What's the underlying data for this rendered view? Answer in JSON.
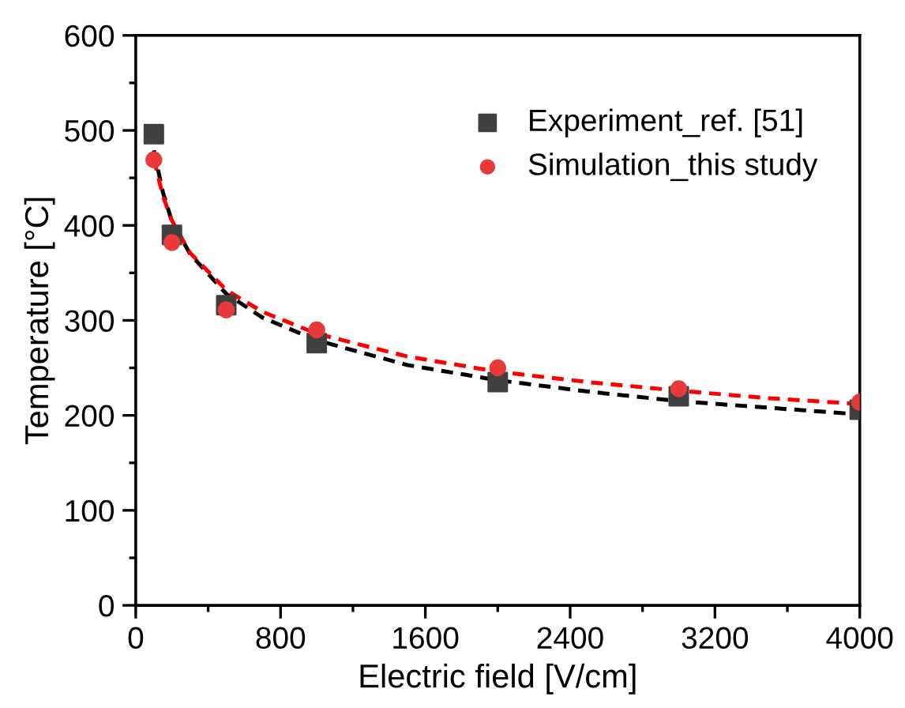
{
  "chart_data": {
    "type": "scatter",
    "xlabel": "Electric field [V/cm]",
    "ylabel": "Temperature [°C]",
    "xlim": [
      0,
      4000
    ],
    "xticks": [
      0,
      800,
      1600,
      2400,
      3200,
      4000
    ],
    "ylim": [
      0,
      600
    ],
    "yticks": [
      0,
      100,
      200,
      300,
      400,
      500,
      600
    ],
    "grid": false,
    "legend": "top right",
    "series": [
      {
        "type": "line",
        "color": "#000000",
        "line_style": "dashed",
        "marker": "none",
        "x": [
          100,
          150,
          200,
          300,
          500,
          700,
          1000,
          1500,
          2000,
          2500,
          3000,
          3500,
          4000
        ],
        "values": [
          479,
          435,
          404,
          370,
          328,
          303,
          279,
          253,
          237,
          225,
          215,
          208,
          201
        ]
      },
      {
        "type": "line",
        "color": "#ff0000",
        "line_style": "dashed",
        "marker": "none",
        "x": [
          100,
          150,
          200,
          300,
          500,
          700,
          1000,
          1500,
          2000,
          2500,
          3000,
          3500,
          4000
        ],
        "values": [
          470,
          431,
          405,
          371,
          332,
          309,
          286,
          262,
          246,
          235,
          226,
          218,
          212
        ]
      },
      {
        "name": "Experiment_ref. [51]",
        "color": "#404040",
        "marker": "square",
        "x": [
          100,
          200,
          500,
          1000,
          2000,
          3000,
          4000
        ],
        "values": [
          496,
          390,
          316,
          276,
          235,
          220,
          206
        ]
      },
      {
        "name": "Simulation_this study",
        "color": "#e83a3a",
        "marker": "circle",
        "x": [
          100,
          200,
          500,
          1000,
          2000,
          3000,
          4000
        ],
        "values": [
          469,
          382,
          311,
          290,
          250,
          228,
          214
        ]
      }
    ]
  }
}
